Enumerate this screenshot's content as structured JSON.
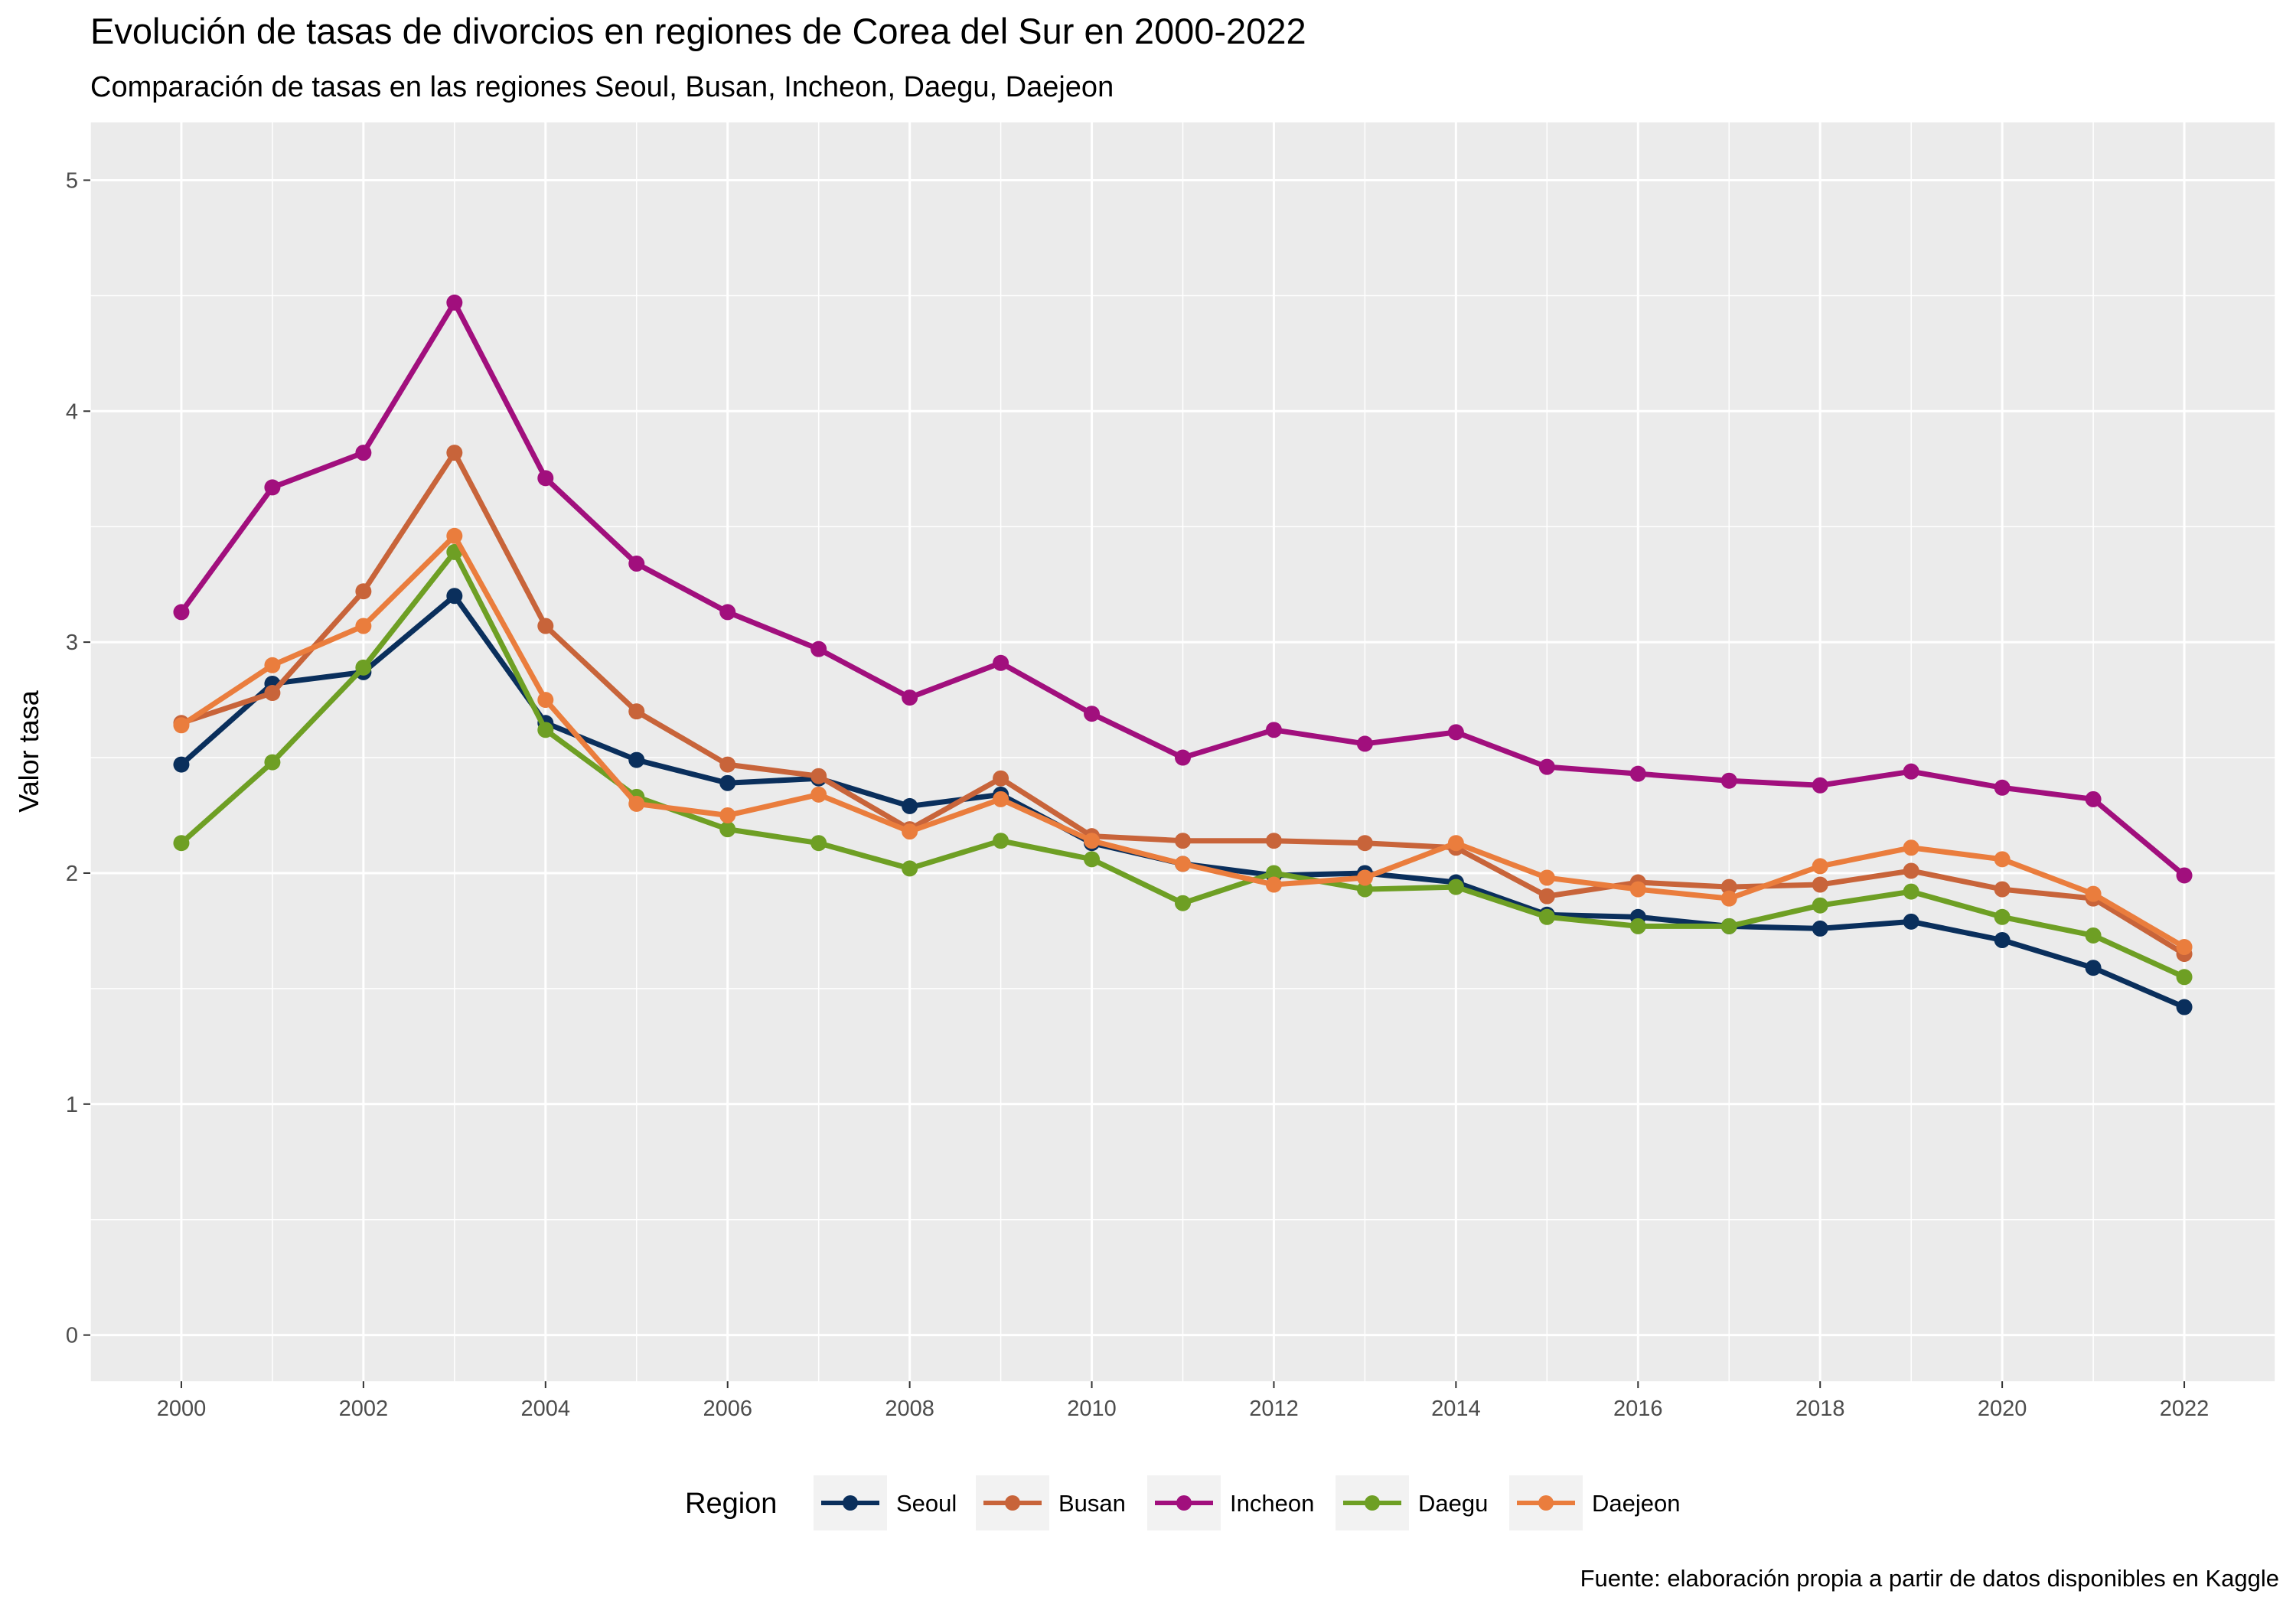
{
  "chart_data": {
    "type": "line",
    "title": "Evolución de tasas de divorcios en regiones de Corea del Sur en 2000-2022",
    "subtitle": "Comparación de  tasas en las regiones Seoul, Busan, Incheon, Daegu, Daejeon",
    "xlabel": "",
    "ylabel": "Valor tasa",
    "caption": "Fuente: elaboración propia a partir de datos disponibles en Kaggle",
    "legend_title": "Region",
    "legend_position": "bottom",
    "grid": true,
    "xlim": [
      1999,
      2023
    ],
    "ylim": [
      -0.2,
      5.25
    ],
    "x_ticks": [
      "2000",
      "2002",
      "2004",
      "2006",
      "2008",
      "2010",
      "2012",
      "2014",
      "2016",
      "2018",
      "2020",
      "2022"
    ],
    "y_ticks": [
      "0",
      "1",
      "2",
      "3",
      "4",
      "5"
    ],
    "x": [
      2000,
      2001,
      2002,
      2003,
      2004,
      2005,
      2006,
      2007,
      2008,
      2009,
      2010,
      2011,
      2012,
      2013,
      2014,
      2015,
      2016,
      2017,
      2018,
      2019,
      2020,
      2021,
      2022
    ],
    "series": [
      {
        "name": "Seoul",
        "color": "#0a2f5c",
        "values": [
          2.47,
          2.82,
          2.87,
          3.2,
          2.65,
          2.49,
          2.39,
          2.41,
          2.29,
          2.34,
          2.13,
          2.04,
          1.99,
          2.0,
          1.96,
          1.82,
          1.81,
          1.77,
          1.76,
          1.79,
          1.71,
          1.59,
          1.42
        ]
      },
      {
        "name": "Busan",
        "color": "#c8643a",
        "values": [
          2.65,
          2.78,
          3.22,
          3.82,
          3.07,
          2.7,
          2.47,
          2.42,
          2.19,
          2.41,
          2.16,
          2.14,
          2.14,
          2.13,
          2.11,
          1.9,
          1.96,
          1.94,
          1.95,
          2.01,
          1.93,
          1.89,
          1.65
        ]
      },
      {
        "name": "Incheon",
        "color": "#a10f7d",
        "values": [
          3.13,
          3.67,
          3.82,
          4.47,
          3.71,
          3.34,
          3.13,
          2.97,
          2.76,
          2.91,
          2.69,
          2.5,
          2.62,
          2.56,
          2.61,
          2.46,
          2.43,
          2.4,
          2.38,
          2.44,
          2.37,
          2.32,
          1.99
        ]
      },
      {
        "name": "Daegu",
        "color": "#6e9f24",
        "values": [
          2.13,
          2.48,
          2.89,
          3.39,
          2.62,
          2.33,
          2.19,
          2.13,
          2.02,
          2.14,
          2.06,
          1.87,
          2.0,
          1.93,
          1.94,
          1.81,
          1.77,
          1.77,
          1.86,
          1.92,
          1.81,
          1.73,
          1.55
        ]
      },
      {
        "name": "Daejeon",
        "color": "#ea7d3d",
        "values": [
          2.64,
          2.9,
          3.07,
          3.46,
          2.75,
          2.3,
          2.25,
          2.34,
          2.18,
          2.32,
          2.14,
          2.04,
          1.95,
          1.98,
          2.13,
          1.98,
          1.93,
          1.89,
          2.03,
          2.11,
          2.06,
          1.91,
          1.68
        ]
      }
    ]
  }
}
